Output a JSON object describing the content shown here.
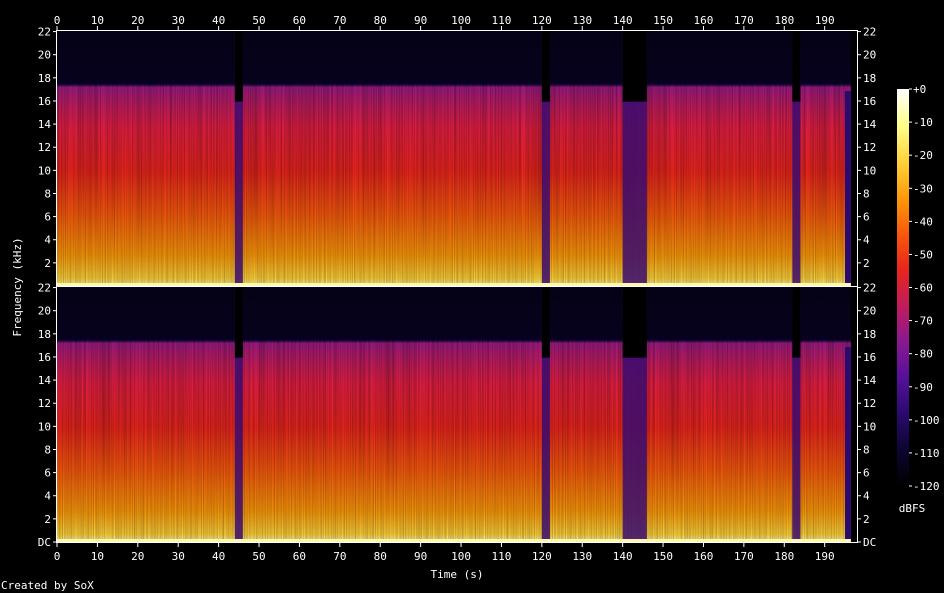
{
  "chart_data": {
    "type": "heatmap",
    "subtype": "spectrogram",
    "channels": 2,
    "xlabel": "Time (s)",
    "ylabel": "Frequency (kHz)",
    "x_ticks": [
      0,
      10,
      20,
      30,
      40,
      50,
      60,
      70,
      80,
      90,
      100,
      110,
      120,
      130,
      140,
      150,
      160,
      170,
      180,
      190
    ],
    "xlim": [
      0,
      198
    ],
    "y_ticks": [
      "DC",
      "2",
      "4",
      "6",
      "8",
      "10",
      "12",
      "14",
      "16",
      "18",
      "20",
      "22"
    ],
    "ylim_khz": [
      0,
      22.05
    ],
    "colorbar": {
      "label": "dBFS",
      "ticks": [
        "+0",
        "-10",
        "-20",
        "-30",
        "-40",
        "-50",
        "-60",
        "-70",
        "-80",
        "-90",
        "-100",
        "-110",
        "-120"
      ],
      "range_db": [
        -120,
        0
      ],
      "colors": [
        "#000000",
        "#0c0530",
        "#2a0a6e",
        "#55109a",
        "#8a1890",
        "#c21c5c",
        "#e8241c",
        "#f75a0c",
        "#fd9a0a",
        "#fed33a",
        "#ffff8a",
        "#ffffff"
      ]
    },
    "features": {
      "lowpass_cutoff_khz": 17.5,
      "silent_gaps_s": [
        [
          44,
          46
        ],
        [
          120,
          122
        ],
        [
          140,
          146
        ],
        [
          182,
          184
        ]
      ],
      "track_end_s": 196.5
    }
  },
  "footer": "Created by SoX"
}
